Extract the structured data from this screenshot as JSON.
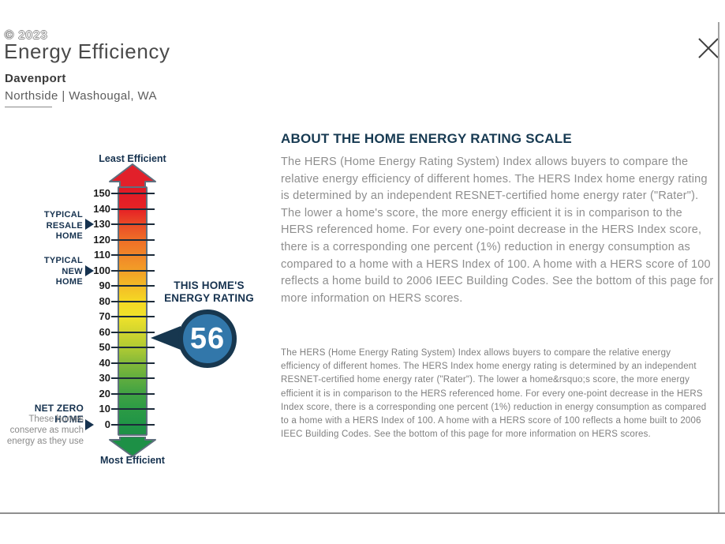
{
  "header": {
    "watermark": "© 2023",
    "title": "Energy Efficiency",
    "community": "Davenport",
    "location": "Northside | Washougal, WA"
  },
  "scale": {
    "top_label": "Least Efficient",
    "bottom_label": "Most Efficient",
    "ticks": [
      150,
      140,
      130,
      120,
      110,
      100,
      90,
      80,
      70,
      60,
      50,
      40,
      30,
      20,
      10,
      0
    ],
    "colors": {
      "arrow_up": "#e2202a",
      "arrow_down": "#1d9046",
      "arrow_outline": "#5f6f7e",
      "tick": "#1c2b3a",
      "label_navy": "#16324f"
    },
    "gradient": [
      {
        "pct": 0,
        "color": "#df1a25"
      },
      {
        "pct": 2.8,
        "color": "#e31c26"
      },
      {
        "pct": 9.0,
        "color": "#e62325"
      },
      {
        "pct": 15.2,
        "color": "#ea4e27"
      },
      {
        "pct": 21.4,
        "color": "#ef6f27"
      },
      {
        "pct": 27.6,
        "color": "#f18728"
      },
      {
        "pct": 33.7,
        "color": "#f29f27"
      },
      {
        "pct": 39.9,
        "color": "#f3bc26"
      },
      {
        "pct": 46.1,
        "color": "#f5d824"
      },
      {
        "pct": 52.3,
        "color": "#efe22a"
      },
      {
        "pct": 58.5,
        "color": "#d2d52e"
      },
      {
        "pct": 64.7,
        "color": "#b0cb33"
      },
      {
        "pct": 70.8,
        "color": "#87ba39"
      },
      {
        "pct": 77.0,
        "color": "#62ae3e"
      },
      {
        "pct": 83.2,
        "color": "#42a243"
      },
      {
        "pct": 89.4,
        "color": "#2c9b45"
      },
      {
        "pct": 95.5,
        "color": "#219546"
      },
      {
        "pct": 100,
        "color": "#1d9046"
      }
    ],
    "annotations": {
      "resale": {
        "lines": [
          "TYPICAL",
          "RESALE",
          "HOME"
        ],
        "value": 130
      },
      "new": {
        "lines": [
          "TYPICAL",
          "NEW",
          "HOME"
        ],
        "value": 100
      },
      "netzero": {
        "title": "NET ZERO HOME",
        "lines": [
          "These homes",
          "conserve as much",
          "energy as they use"
        ],
        "value": 0
      }
    }
  },
  "callout": {
    "label_line1": "THIS HOME'S",
    "label_line2": "ENERGY RATING",
    "score": "56",
    "circle_fill": "#3277aa",
    "ring_color": "#17374f"
  },
  "about": {
    "heading": "ABOUT THE HOME ENERGY RATING SCALE",
    "paragraph": "The HERS (Home Energy Rating System) Index allows buyers to compare the relative energy efficiency of different homes. The HERS Index home energy rating is determined by an independent RESNET-certified home energy rater (\"Rater\"). The lower a home's score, the more energy efficient it is in comparison to the HERS referenced home. For every one-point decrease in the HERS Index score, there is a corresponding one percent (1%) reduction in energy consumption as compared to a home with a HERS Index of 100. A home with a HERS score of 100 reflects a home build to 2006 IEEC Building Codes. See the bottom of this page for more information on HERS scores.",
    "paragraph_small": "The HERS (Home Energy Rating System) Index allows buyers to compare the relative energy efficiency of different homes. The HERS Index home energy rating is determined by an independent RESNET-certified home energy rater (\"Rater\"). The lower a home&rsquo;s score, the more energy efficient it is in comparison to the HERS referenced home. For every one-point decrease in the HERS Index score, there is a corresponding one percent (1%) reduction in energy consumption as compared to a home with a HERS Index of 100. A home with a HERS score of 100 reflects a home built to 2006 IEEC Building Codes. See the bottom of this page for more information on HERS scores."
  }
}
